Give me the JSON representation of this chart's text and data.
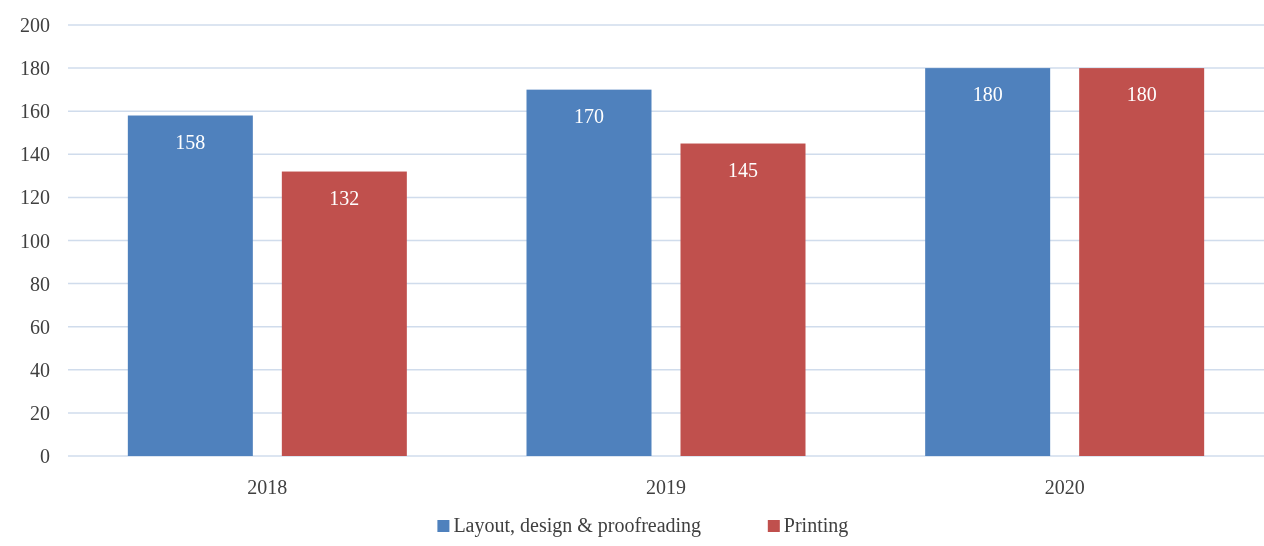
{
  "chart_data": {
    "type": "bar",
    "categories": [
      "2018",
      "2019",
      "2020"
    ],
    "series": [
      {
        "name": "Layout, design & proofreading",
        "color": "#4f81bd",
        "values": [
          158,
          170,
          180
        ]
      },
      {
        "name": "Printing",
        "color": "#c0504d",
        "values": [
          132,
          145,
          180
        ]
      }
    ],
    "ylim": [
      0,
      200
    ],
    "yticks": [
      0,
      20,
      40,
      60,
      80,
      100,
      120,
      140,
      160,
      180,
      200
    ],
    "grid": "y",
    "legend": "bottom",
    "data_labels": true
  }
}
